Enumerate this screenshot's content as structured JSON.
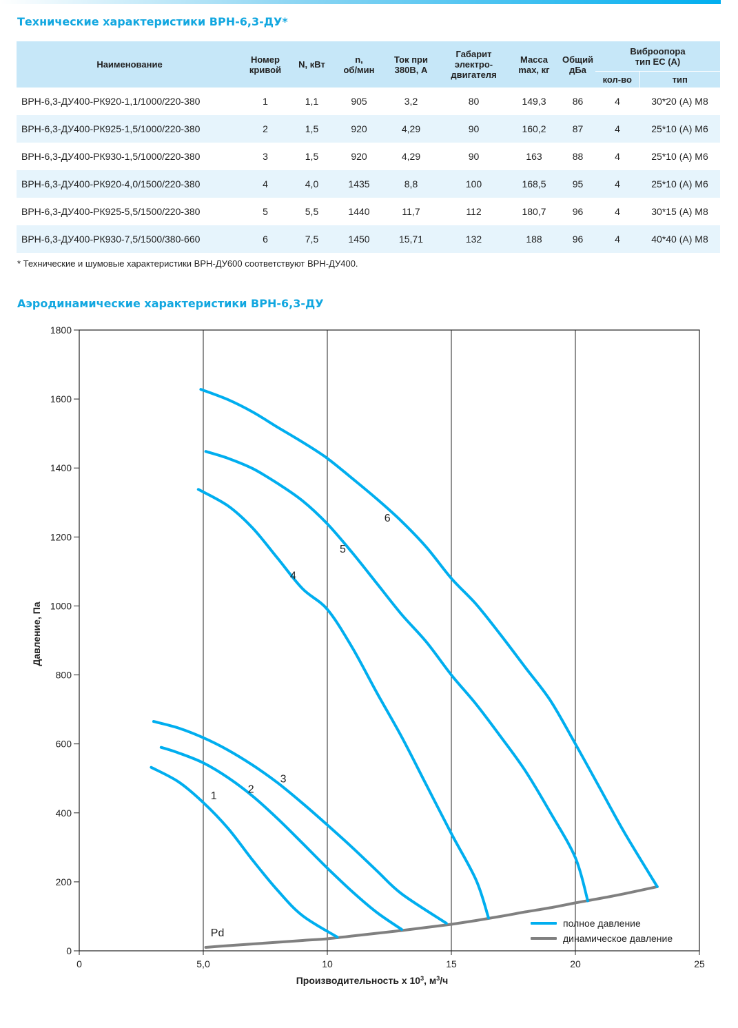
{
  "section1_title": "Технические характеристики ВРН-6,3-ДУ*",
  "table": {
    "headers": {
      "name": "Наименование",
      "curve": [
        "Номер",
        "кривой"
      ],
      "power": "N, кВт",
      "rpm": [
        "n,",
        "об/мин"
      ],
      "current": [
        "Ток при",
        "380В, А"
      ],
      "motor": [
        "Габарит",
        "электро-",
        "двигателя"
      ],
      "mass": [
        "Масса",
        "max, кг"
      ],
      "noise": [
        "Общий",
        "дБа"
      ],
      "vibro": [
        "Виброопора",
        "тип ЕС (А)"
      ],
      "vibro_qty": "кол-во",
      "vibro_type": "тип"
    },
    "rows": [
      {
        "name": "ВРН-6,3-ДУ400-РК920-1,1/1000/220-380",
        "curve": "1",
        "power": "1,1",
        "rpm": "905",
        "current": "3,2",
        "motor": "80",
        "mass": "149,3",
        "noise": "86",
        "qty": "4",
        "type": "30*20 (А) М8"
      },
      {
        "name": "ВРН-6,3-ДУ400-РК925-1,5/1000/220-380",
        "curve": "2",
        "power": "1,5",
        "rpm": "920",
        "current": "4,29",
        "motor": "90",
        "mass": "160,2",
        "noise": "87",
        "qty": "4",
        "type": "25*10 (А) М6"
      },
      {
        "name": "ВРН-6,3-ДУ400-РК930-1,5/1000/220-380",
        "curve": "3",
        "power": "1,5",
        "rpm": "920",
        "current": "4,29",
        "motor": "90",
        "mass": "163",
        "noise": "88",
        "qty": "4",
        "type": "25*10 (А) М6"
      },
      {
        "name": "ВРН-6,3-ДУ400-РК920-4,0/1500/220-380",
        "curve": "4",
        "power": "4,0",
        "rpm": "1435",
        "current": "8,8",
        "motor": "100",
        "mass": "168,5",
        "noise": "95",
        "qty": "4",
        "type": "25*10 (А) М6"
      },
      {
        "name": "ВРН-6,3-ДУ400-РК925-5,5/1500/220-380",
        "curve": "5",
        "power": "5,5",
        "rpm": "1440",
        "current": "11,7",
        "motor": "112",
        "mass": "180,7",
        "noise": "96",
        "qty": "4",
        "type": "30*15 (А) М8"
      },
      {
        "name": "ВРН-6,3-ДУ400-РК930-7,5/1500/380-660",
        "curve": "6",
        "power": "7,5",
        "rpm": "1450",
        "current": "15,71",
        "motor": "132",
        "mass": "188",
        "noise": "96",
        "qty": "4",
        "type": "40*40 (А) М8"
      }
    ]
  },
  "footnote": "* Технические и шумовые характеристики ВРН-ДУ600 соответствуют ВРН-ДУ400.",
  "section2_title": "Аэродинамические характеристики ВРН-6,3-ДУ",
  "colors": {
    "full_pressure": "#00aeef",
    "dynamic_pressure": "#808080",
    "title": "#12a7e0",
    "header_bg": "#c6e7f8",
    "row_alt": "#e6f4fc"
  },
  "chart_data": {
    "type": "line",
    "xlabel": "Производительность х 10³, м³/ч",
    "ylabel": "Давление, Па",
    "xlim": [
      0,
      25
    ],
    "ylim": [
      0,
      1800
    ],
    "xticks": [
      {
        "v": 0,
        "label": "0"
      },
      {
        "v": 5,
        "label": "5,0"
      },
      {
        "v": 10,
        "label": "10"
      },
      {
        "v": 15,
        "label": "15"
      },
      {
        "v": 20,
        "label": "20"
      },
      {
        "v": 25,
        "label": "25"
      }
    ],
    "yticks": [
      0,
      200,
      400,
      600,
      800,
      1000,
      1200,
      1400,
      1600,
      1800
    ],
    "grid": "vertical lines at 5, 10, 15, 20",
    "legend": {
      "position": "bottom-right",
      "full": "полное давление",
      "dynamic": "динамическое давление"
    },
    "series": [
      {
        "name": "1",
        "label_at": [
          5.3,
          440
        ],
        "points": [
          [
            2.9,
            532
          ],
          [
            4,
            490
          ],
          [
            5,
            430
          ],
          [
            6,
            355
          ],
          [
            7,
            262
          ],
          [
            8,
            175
          ],
          [
            9,
            102
          ],
          [
            10.4,
            40
          ]
        ]
      },
      {
        "name": "2",
        "label_at": [
          6.8,
          458
        ],
        "points": [
          [
            3.3,
            590
          ],
          [
            4,
            574
          ],
          [
            5,
            545
          ],
          [
            6,
            502
          ],
          [
            7,
            448
          ],
          [
            8,
            383
          ],
          [
            9,
            312
          ],
          [
            10,
            240
          ],
          [
            11,
            172
          ],
          [
            12,
            111
          ],
          [
            13.0,
            62
          ]
        ]
      },
      {
        "name": "3",
        "label_at": [
          8.1,
          488
        ],
        "points": [
          [
            3.0,
            665
          ],
          [
            4,
            646
          ],
          [
            5,
            618
          ],
          [
            6,
            582
          ],
          [
            7,
            538
          ],
          [
            8,
            487
          ],
          [
            9,
            428
          ],
          [
            10,
            365
          ],
          [
            11,
            300
          ],
          [
            12,
            232
          ],
          [
            13,
            165
          ],
          [
            14.8,
            80
          ]
        ]
      },
      {
        "name": "4",
        "label_at": [
          8.5,
          1078
        ],
        "points": [
          [
            4.8,
            1338
          ],
          [
            6,
            1290
          ],
          [
            7,
            1225
          ],
          [
            8,
            1138
          ],
          [
            9,
            1050
          ],
          [
            10,
            990
          ],
          [
            11,
            880
          ],
          [
            12,
            748
          ],
          [
            13,
            620
          ],
          [
            14,
            480
          ],
          [
            15,
            340
          ],
          [
            16,
            205
          ],
          [
            16.5,
            95
          ]
        ]
      },
      {
        "name": "5",
        "label_at": [
          10.5,
          1155
        ],
        "points": [
          [
            5.1,
            1448
          ],
          [
            6,
            1428
          ],
          [
            7,
            1398
          ],
          [
            8,
            1355
          ],
          [
            9,
            1305
          ],
          [
            10,
            1238
          ],
          [
            11,
            1155
          ],
          [
            12,
            1065
          ],
          [
            13,
            975
          ],
          [
            14,
            895
          ],
          [
            15,
            800
          ],
          [
            16,
            715
          ],
          [
            17,
            620
          ],
          [
            18,
            520
          ],
          [
            19,
            400
          ],
          [
            20,
            270
          ],
          [
            20.5,
            145
          ]
        ]
      },
      {
        "name": "6",
        "label_at": [
          12.3,
          1245
        ],
        "points": [
          [
            4.9,
            1628
          ],
          [
            6,
            1598
          ],
          [
            7,
            1562
          ],
          [
            8,
            1518
          ],
          [
            9,
            1475
          ],
          [
            10,
            1428
          ],
          [
            11,
            1370
          ],
          [
            12,
            1310
          ],
          [
            13,
            1245
          ],
          [
            14,
            1170
          ],
          [
            15,
            1080
          ],
          [
            16,
            1005
          ],
          [
            17,
            915
          ],
          [
            18,
            820
          ],
          [
            19,
            725
          ],
          [
            20,
            600
          ],
          [
            21,
            470
          ],
          [
            22,
            340
          ],
          [
            23.3,
            186
          ]
        ]
      }
    ],
    "dynamic": {
      "name": "Pd",
      "label_at": [
        5.3,
        42
      ],
      "points": [
        [
          5.1,
          10
        ],
        [
          6,
          15
        ],
        [
          7,
          20
        ],
        [
          8,
          25
        ],
        [
          9,
          30
        ],
        [
          10,
          35
        ],
        [
          11,
          43
        ],
        [
          12,
          51
        ],
        [
          13,
          59
        ],
        [
          14,
          68
        ],
        [
          15,
          77
        ],
        [
          16,
          88
        ],
        [
          17,
          100
        ],
        [
          18,
          113
        ],
        [
          19,
          125
        ],
        [
          20,
          139
        ],
        [
          21,
          152
        ],
        [
          22,
          166
        ],
        [
          23.3,
          186
        ]
      ]
    }
  }
}
